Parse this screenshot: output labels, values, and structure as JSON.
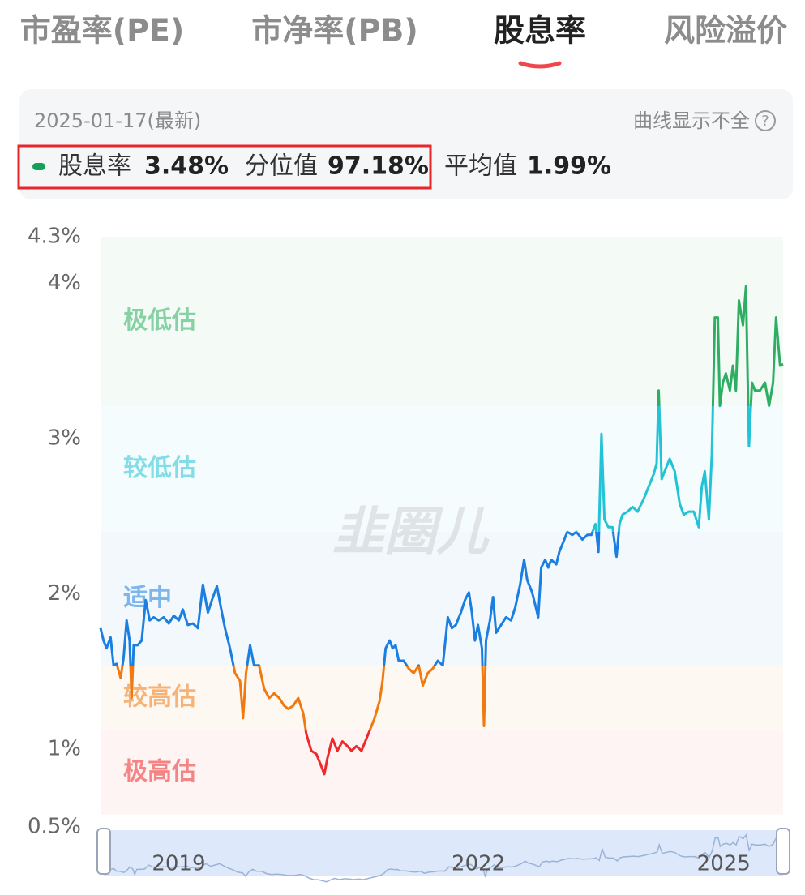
{
  "tabs": [
    "市盈率(PE)",
    "市净率(PB)",
    "股息率",
    "风险溢价"
  ],
  "active_tab": 2,
  "header": {
    "date": "2025-01-17(最新)",
    "note": "曲线显示不全",
    "help": "?"
  },
  "stats": [
    {
      "label": "股息率",
      "value": "3.48%"
    },
    {
      "label": "分位值",
      "value": "97.18%"
    },
    {
      "label": "平均值",
      "value": "1.99%"
    }
  ],
  "chart_data": {
    "type": "line",
    "watermark": "韭圈儿",
    "ylim": [
      0.5,
      4.3
    ],
    "yticks": [
      {
        "value": 0.5,
        "label": "0.5%"
      },
      {
        "value": 1,
        "label": "1%"
      },
      {
        "value": 2,
        "label": "2%"
      },
      {
        "value": 3,
        "label": "3%"
      },
      {
        "value": 4,
        "label": "4%"
      },
      {
        "value": 4.3,
        "label": "4.3%"
      }
    ],
    "xlim": [
      2018.25,
      2025.05
    ],
    "xticks": [
      2019,
      2022,
      2025
    ],
    "grid": false,
    "zones": [
      {
        "label": "极低估",
        "color": "#2fae63",
        "range": [
          3.21,
          4.3
        ]
      },
      {
        "label": "较低估",
        "color": "#22c3d6",
        "range": [
          2.4,
          3.21
        ]
      },
      {
        "label": "适中",
        "color": "#1a7fe0",
        "range": [
          1.54,
          2.4
        ]
      },
      {
        "label": "较高估",
        "color": "#f07a10",
        "range": [
          1.12,
          1.54
        ]
      },
      {
        "label": "极高估",
        "color": "#ec2a2a",
        "range": [
          0.58,
          1.12
        ]
      }
    ],
    "x": [
      2018.25,
      2018.28,
      2018.31,
      2018.35,
      2018.38,
      2018.41,
      2018.45,
      2018.48,
      2018.51,
      2018.54,
      2018.56,
      2018.58,
      2018.62,
      2018.66,
      2018.7,
      2018.74,
      2018.78,
      2018.83,
      2018.88,
      2018.93,
      2018.98,
      2019.03,
      2019.07,
      2019.12,
      2019.17,
      2019.22,
      2019.27,
      2019.32,
      2019.36,
      2019.41,
      2019.45,
      2019.49,
      2019.54,
      2019.59,
      2019.64,
      2019.67,
      2019.7,
      2019.74,
      2019.78,
      2019.83,
      2019.88,
      2019.93,
      2019.98,
      2020.03,
      2020.08,
      2020.12,
      2020.17,
      2020.22,
      2020.27,
      2020.3,
      2020.35,
      2020.4,
      2020.45,
      2020.48,
      2020.51,
      2020.56,
      2020.61,
      2020.66,
      2020.71,
      2020.75,
      2020.8,
      2020.85,
      2020.9,
      2020.95,
      2020.98,
      2021.03,
      2021.06,
      2021.09,
      2021.13,
      2021.16,
      2021.19,
      2021.22,
      2021.27,
      2021.32,
      2021.37,
      2021.42,
      2021.46,
      2021.51,
      2021.56,
      2021.61,
      2021.66,
      2021.71,
      2021.75,
      2021.79,
      2021.84,
      2021.88,
      2021.92,
      2021.95,
      2021.98,
      2022.01,
      2022.05,
      2022.07,
      2022.09,
      2022.13,
      2022.16,
      2022.19,
      2022.24,
      2022.29,
      2022.34,
      2022.38,
      2022.43,
      2022.47,
      2022.5,
      2022.55,
      2022.58,
      2022.61,
      2022.64,
      2022.68,
      2022.71,
      2022.74,
      2022.79,
      2022.82,
      2022.87,
      2022.9,
      2022.95,
      2022.99,
      2023.05,
      2023.1,
      2023.14,
      2023.18,
      2023.21,
      2023.24,
      2023.27,
      2023.31,
      2023.35,
      2023.39,
      2023.42,
      2023.45,
      2023.5,
      2023.55,
      2023.6,
      2023.66,
      2023.71,
      2023.76,
      2023.79,
      2023.81,
      2023.84,
      2023.87,
      2023.92,
      2023.97,
      2024.02,
      2024.06,
      2024.11,
      2024.16,
      2024.21,
      2024.24,
      2024.27,
      2024.31,
      2024.34,
      2024.37,
      2024.4,
      2024.42,
      2024.45,
      2024.48,
      2024.52,
      2024.55,
      2024.58,
      2024.61,
      2024.65,
      2024.68,
      2024.69,
      2024.71,
      2024.74,
      2024.77,
      2024.82,
      2024.87,
      2024.91,
      2024.95,
      2024.98,
      2025.02,
      2025.05
    ],
    "series": [
      {
        "color": "#1a7fe0",
        "values": [
          1.78,
          1.7,
          1.65,
          1.72,
          1.54,
          1.55,
          1.46,
          1.59,
          1.83,
          1.7,
          1.33,
          1.67,
          1.67,
          1.7,
          1.96,
          1.83,
          1.85,
          1.83,
          1.85,
          1.81,
          1.86,
          1.83,
          1.9,
          1.8,
          1.81,
          1.78,
          2.06,
          1.88,
          1.96,
          2.05,
          1.91,
          1.78,
          1.65,
          1.49,
          1.44,
          1.2,
          1.49,
          1.67,
          1.54,
          1.54,
          1.39,
          1.33,
          1.36,
          1.33,
          1.28,
          1.26,
          1.28,
          1.33,
          1.23,
          1.1,
          0.99,
          0.97,
          0.89,
          0.84,
          0.94,
          1.07,
          0.99,
          1.05,
          1.02,
          0.99,
          1.02,
          0.99,
          1.07,
          1.15,
          1.2,
          1.31,
          1.44,
          1.65,
          1.7,
          1.65,
          1.67,
          1.57,
          1.57,
          1.52,
          1.49,
          1.54,
          1.41,
          1.49,
          1.52,
          1.57,
          1.54,
          1.85,
          1.78,
          1.8,
          1.88,
          1.96,
          2.01,
          1.88,
          1.7,
          1.8,
          1.65,
          1.15,
          1.7,
          1.83,
          1.98,
          1.75,
          1.8,
          1.85,
          1.83,
          1.91,
          2.06,
          2.22,
          2.09,
          2.01,
          1.93,
          1.85,
          2.17,
          2.22,
          2.17,
          2.22,
          2.19,
          2.27,
          2.35,
          2.4,
          2.38,
          2.4,
          2.35,
          2.38,
          2.38,
          2.45,
          2.27,
          3.03,
          2.48,
          2.43,
          2.43,
          2.24,
          2.45,
          2.51,
          2.53,
          2.56,
          2.53,
          2.61,
          2.69,
          2.77,
          2.84,
          3.31,
          2.74,
          2.79,
          2.87,
          2.79,
          2.58,
          2.51,
          2.53,
          2.53,
          2.43,
          2.69,
          2.79,
          2.48,
          2.9,
          3.78,
          3.78,
          3.21,
          3.36,
          3.42,
          3.31,
          3.47,
          3.31,
          3.89,
          3.73,
          3.98,
          3.63,
          2.95,
          3.36,
          3.31,
          3.31,
          3.36,
          3.21,
          3.36,
          3.78,
          3.47,
          3.48
        ]
      }
    ]
  }
}
